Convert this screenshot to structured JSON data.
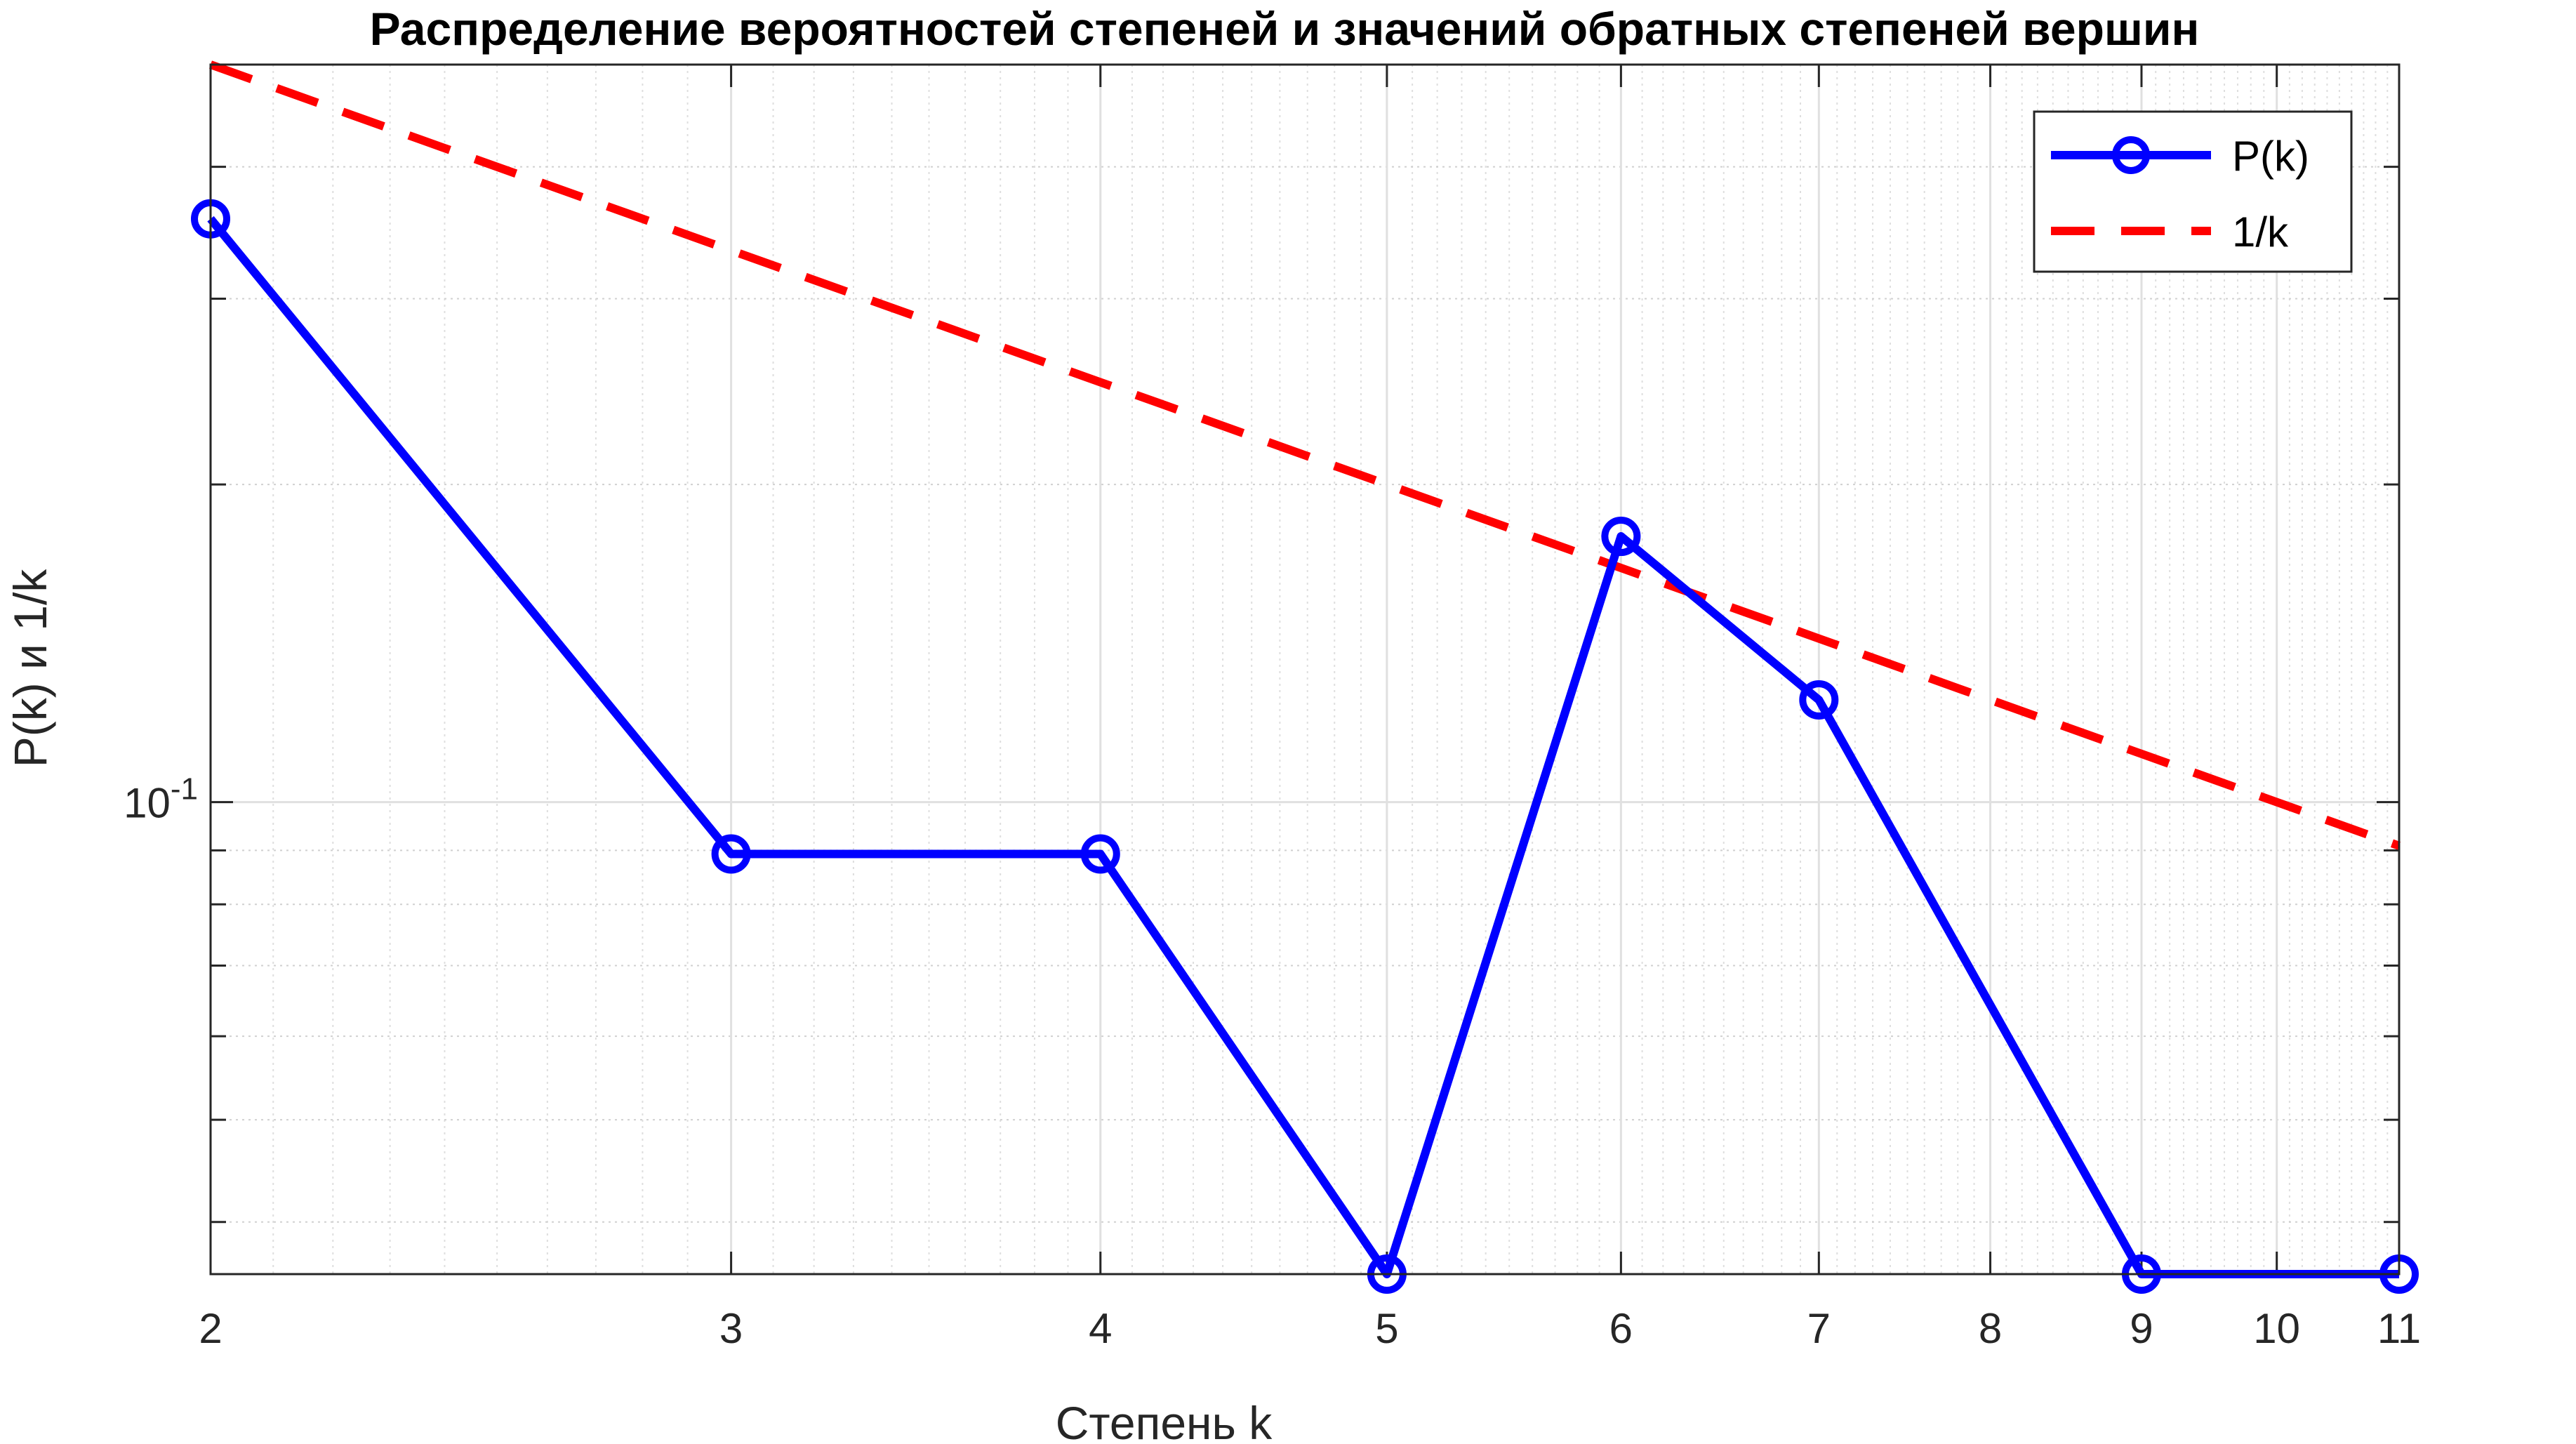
{
  "chart_data": {
    "type": "line",
    "title": "Распределение вероятностей степеней и значений обратных степеней вершин",
    "xlabel": "Степень k",
    "ylabel": "P(k) и 1/k",
    "x_scale": "log",
    "y_scale": "log",
    "xlim": [
      2,
      11
    ],
    "ylim": [
      0.0357,
      0.5
    ],
    "x_ticks": [
      2,
      3,
      4,
      5,
      6,
      7,
      8,
      9,
      10,
      11
    ],
    "x_tick_labels": [
      "2",
      "3",
      "4",
      "5",
      "6",
      "7",
      "8",
      "9",
      "10",
      "11"
    ],
    "y_ticks": [
      0.1
    ],
    "y_tick_labels": [
      {
        "base": "10",
        "exponent": "-1"
      }
    ],
    "grid": true,
    "legend_position": "top-right",
    "series": [
      {
        "name": "P(k)",
        "color": "#0000ff",
        "style": "solid",
        "marker": "circle",
        "x": [
          2,
          3,
          4,
          5,
          6,
          7,
          9,
          11
        ],
        "y": [
          0.3571,
          0.0893,
          0.0893,
          0.0357,
          0.1786,
          0.125,
          0.0357,
          0.0357
        ]
      },
      {
        "name": "1/k",
        "color": "#ff0000",
        "style": "dashed",
        "marker": "none",
        "x": [
          2,
          3,
          4,
          5,
          6,
          7,
          8,
          9,
          10,
          11
        ],
        "y": [
          0.5,
          0.3333,
          0.25,
          0.2,
          0.1667,
          0.1429,
          0.125,
          0.1111,
          0.1,
          0.0909
        ]
      }
    ]
  }
}
